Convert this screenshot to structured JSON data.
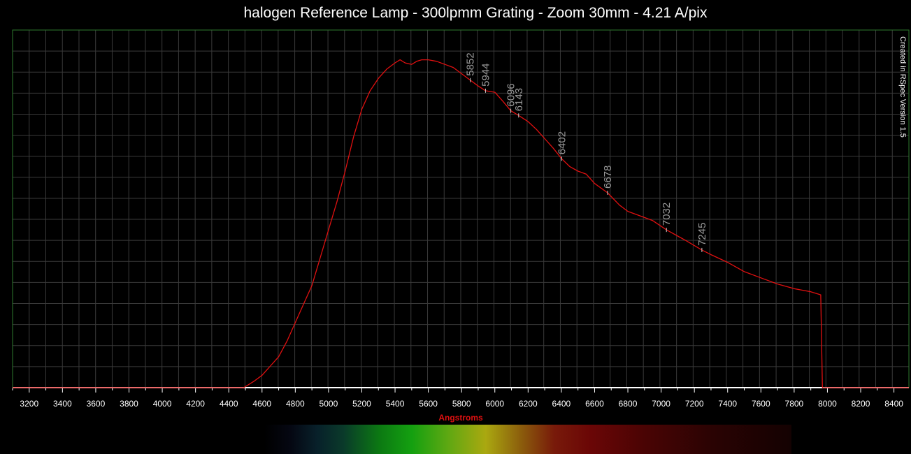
{
  "chart_data": {
    "type": "line",
    "title": "halogen Reference Lamp - 300lpmm Grating - Zoom 30mm - 4.21 A/pix",
    "xlabel": "Angstroms",
    "ylabel": "",
    "credit": "Created in RSpec Version 1.5",
    "xlim": [
      3100,
      8490
    ],
    "ylim": [
      0,
      1.05
    ],
    "grid": true,
    "x_ticks": [
      3200,
      3400,
      3600,
      3800,
      4000,
      4200,
      4400,
      4600,
      4800,
      5000,
      5200,
      5400,
      5600,
      5800,
      6000,
      6200,
      6400,
      6600,
      6800,
      7000,
      7200,
      7400,
      7600,
      7800,
      8000,
      8200,
      8400
    ],
    "series": [
      {
        "color": "#e01010",
        "x": [
          3100,
          4490,
          4550,
          4600,
          4650,
          4700,
          4750,
          4800,
          4850,
          4900,
          4950,
          5000,
          5050,
          5100,
          5150,
          5200,
          5250,
          5300,
          5350,
          5400,
          5430,
          5460,
          5500,
          5530,
          5560,
          5600,
          5650,
          5700,
          5750,
          5800,
          5850,
          5900,
          5944,
          6000,
          6050,
          6096,
          6143,
          6200,
          6250,
          6300,
          6350,
          6402,
          6450,
          6500,
          6550,
          6600,
          6678,
          6750,
          6800,
          6900,
          6950,
          7032,
          7100,
          7150,
          7245,
          7300,
          7400,
          7500,
          7600,
          7700,
          7800,
          7900,
          7960,
          7970,
          8490
        ],
        "y": [
          0.0,
          0.0,
          0.02,
          0.04,
          0.07,
          0.1,
          0.15,
          0.21,
          0.27,
          0.33,
          0.42,
          0.51,
          0.6,
          0.7,
          0.81,
          0.9,
          0.96,
          1.0,
          1.03,
          1.05,
          1.06,
          1.05,
          1.045,
          1.055,
          1.06,
          1.06,
          1.055,
          1.045,
          1.035,
          1.015,
          0.995,
          0.975,
          0.96,
          0.955,
          0.925,
          0.895,
          0.88,
          0.86,
          0.835,
          0.805,
          0.775,
          0.74,
          0.715,
          0.7,
          0.69,
          0.66,
          0.63,
          0.59,
          0.57,
          0.55,
          0.54,
          0.51,
          0.49,
          0.475,
          0.445,
          0.43,
          0.405,
          0.375,
          0.355,
          0.335,
          0.32,
          0.31,
          0.3,
          0.0,
          0.0
        ]
      }
    ],
    "annotations": [
      {
        "label": "5852",
        "x": 5852
      },
      {
        "label": "5944",
        "x": 5944
      },
      {
        "label": "6096",
        "x": 6096
      },
      {
        "label": "6143",
        "x": 6143
      },
      {
        "label": "6402",
        "x": 6402
      },
      {
        "label": "6678",
        "x": 6678
      },
      {
        "label": "7032",
        "x": 7032
      },
      {
        "label": "7245",
        "x": 7245
      }
    ],
    "colorbar_range": [
      4000,
      7200
    ]
  }
}
